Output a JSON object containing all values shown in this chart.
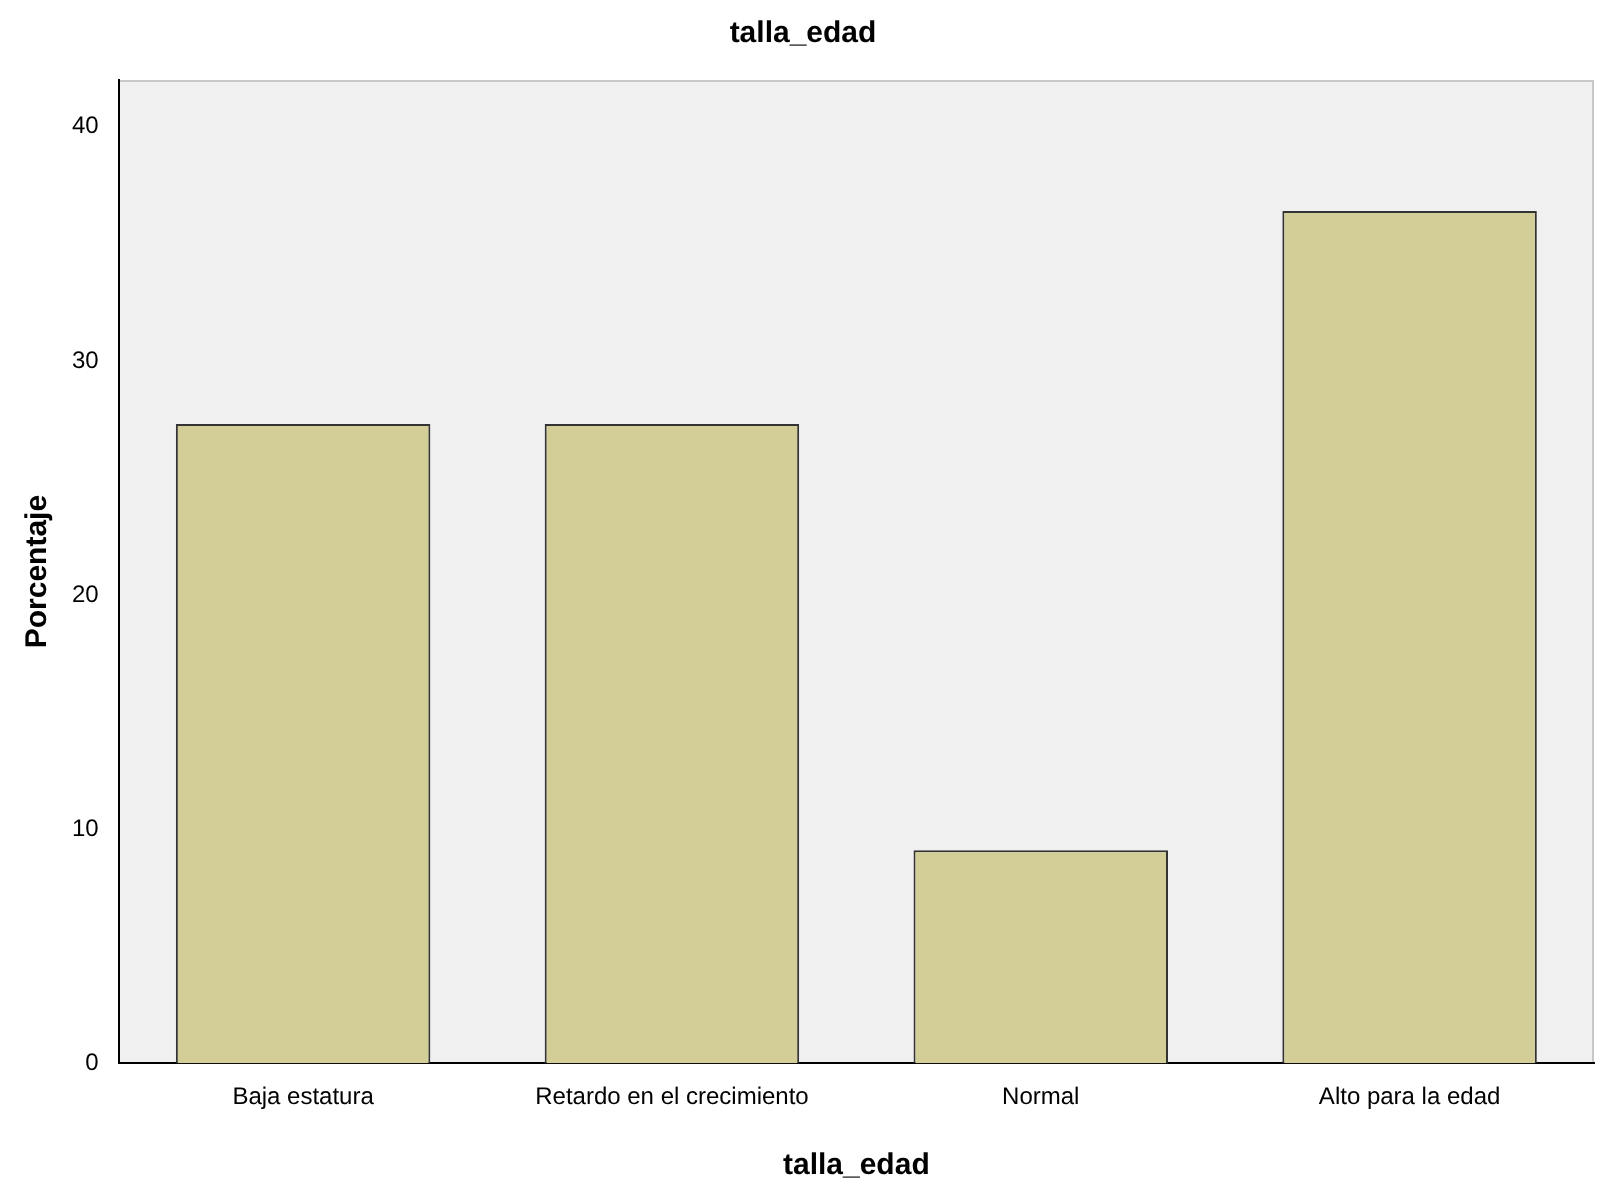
{
  "chart_data": {
    "type": "bar",
    "title": "talla_edad",
    "xlabel": "talla_edad",
    "ylabel": "Porcentaje",
    "categories": [
      "Baja estatura",
      "Retardo en el crecimiento",
      "Normal",
      "Alto para la edad"
    ],
    "values": [
      27.3,
      27.3,
      9.1,
      36.4
    ],
    "color": "#d3ce97",
    "ylim": [
      0,
      42
    ],
    "yticks": [
      0,
      10,
      20,
      30,
      40
    ]
  }
}
